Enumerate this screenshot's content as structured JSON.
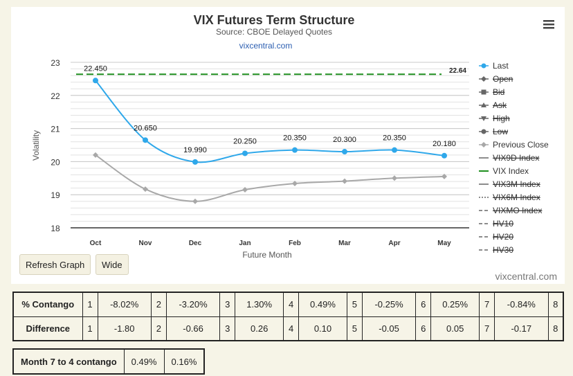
{
  "chart_data": {
    "type": "line",
    "title": "VIX Futures Term Structure",
    "subtitle": "Source: CBOE Delayed Quotes",
    "source_link": "vixcentral.com",
    "credit": "vixcentral.com",
    "xlabel": "Future Month",
    "ylabel": "Volatility",
    "categories": [
      "Oct",
      "Nov",
      "Dec",
      "Jan",
      "Feb",
      "Mar",
      "Apr",
      "May"
    ],
    "ylim": [
      18,
      23
    ],
    "yticks": [
      18,
      19,
      20,
      21,
      22,
      23
    ],
    "grid": true,
    "legend_placement": "right",
    "series": [
      {
        "name": "Last",
        "values": [
          22.45,
          20.65,
          19.99,
          20.25,
          20.35,
          20.3,
          20.35,
          20.18
        ],
        "labels": [
          "22.450",
          "20.650",
          "19.990",
          "20.250",
          "20.350",
          "20.300",
          "20.350",
          "20.180"
        ],
        "color": "#2fa8ea"
      },
      {
        "name": "Previous Close",
        "values": [
          20.2,
          19.17,
          18.8,
          19.15,
          19.34,
          19.41,
          19.5,
          19.55
        ],
        "color": "#a8a8a8"
      }
    ],
    "reference_line": {
      "name": "VIX Index",
      "value": 22.64,
      "label": "22.64",
      "color": "#1e8f1e"
    },
    "legend": [
      {
        "name": "Last",
        "symbol": "circle",
        "color": "#2fa8ea",
        "visible": true
      },
      {
        "name": "Open",
        "symbol": "diamond",
        "color": "#666666",
        "visible": false
      },
      {
        "name": "Bid",
        "symbol": "square",
        "color": "#666666",
        "visible": false
      },
      {
        "name": "Ask",
        "symbol": "triangle",
        "color": "#666666",
        "visible": false
      },
      {
        "name": "High",
        "symbol": "triangle-down",
        "color": "#666666",
        "visible": false
      },
      {
        "name": "Low",
        "symbol": "circle",
        "color": "#666666",
        "visible": false
      },
      {
        "name": "Previous Close",
        "symbol": "diamond",
        "color": "#a8a8a8",
        "visible": true
      },
      {
        "name": "VIX9D Index",
        "symbol": "solid",
        "color": "#666666",
        "visible": false
      },
      {
        "name": "VIX Index",
        "symbol": "solid",
        "color": "#1e8f1e",
        "visible": true
      },
      {
        "name": "VIX3M Index",
        "symbol": "solid",
        "color": "#666666",
        "visible": false
      },
      {
        "name": "VIX6M Index",
        "symbol": "dotted",
        "color": "#666666",
        "visible": false
      },
      {
        "name": "VIXMO Index",
        "symbol": "dashed",
        "color": "#666666",
        "visible": false
      },
      {
        "name": "HV10",
        "symbol": "dashed-dot",
        "color": "#666666",
        "visible": false
      },
      {
        "name": "HV20",
        "symbol": "dashed-dot",
        "color": "#666666",
        "visible": false
      },
      {
        "name": "HV30",
        "symbol": "dashed-dot",
        "color": "#666666",
        "visible": false
      }
    ]
  },
  "buttons": {
    "refresh": "Refresh Graph",
    "wide": "Wide"
  },
  "contango_table": {
    "rows": [
      {
        "label": "% Contango",
        "cells": [
          [
            "1",
            "-8.02%"
          ],
          [
            "2",
            "-3.20%"
          ],
          [
            "3",
            "1.30%"
          ],
          [
            "4",
            "0.49%"
          ],
          [
            "5",
            "-0.25%"
          ],
          [
            "6",
            "0.25%"
          ],
          [
            "7",
            "-0.84%"
          ],
          [
            "8",
            ""
          ]
        ]
      },
      {
        "label": "Difference",
        "cells": [
          [
            "1",
            "-1.80"
          ],
          [
            "2",
            "-0.66"
          ],
          [
            "3",
            "0.26"
          ],
          [
            "4",
            "0.10"
          ],
          [
            "5",
            "-0.05"
          ],
          [
            "6",
            "0.05"
          ],
          [
            "7",
            "-0.17"
          ],
          [
            "8",
            ""
          ]
        ]
      }
    ]
  },
  "month7to4": {
    "label": "Month 7 to 4 contango",
    "value1": "0.49%",
    "value2": "0.16%"
  }
}
